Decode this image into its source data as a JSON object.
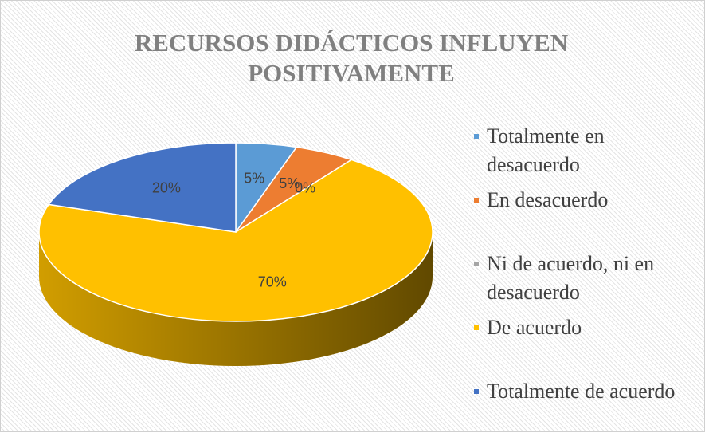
{
  "chart_data": {
    "type": "pie",
    "title": "RECURSOS DIDÁCTICOS INFLUYEN POSITIVAMENTE",
    "categories": [
      "Totalmente en desacuerdo",
      "En desacuerdo",
      "Ni de acuerdo, ni en desacuerdo",
      "De acuerdo",
      "Totalmente de acuerdo"
    ],
    "values": [
      5,
      5,
      0,
      70,
      20
    ],
    "value_labels": [
      "5%",
      "5%",
      "0%",
      "70%",
      "20%"
    ],
    "colors": [
      "#5b9bd5",
      "#ed7d31",
      "#a5a5a5",
      "#ffc000",
      "#4472c4"
    ],
    "legend": "right"
  }
}
